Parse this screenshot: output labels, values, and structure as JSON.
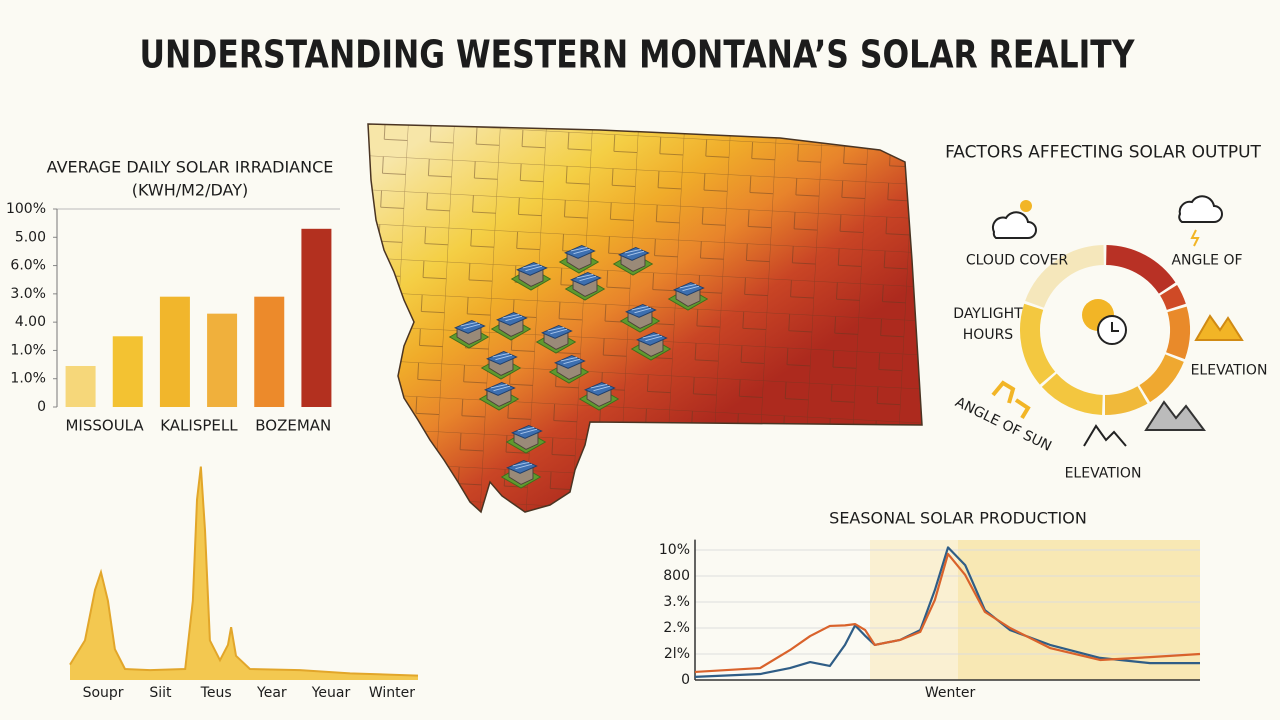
{
  "title": "UNDERSTANDING WESTERN MONTANA’S SOLAR REALITY",
  "chart_data": [
    {
      "type": "bar",
      "title": "AVERAGE DAILY SOLAR IRRADIANCE",
      "subtitle": "(KWH/M2/DAY)",
      "categories": [
        "MISSOULA",
        null,
        "KALISPELL",
        null,
        "BOZEMAN",
        null
      ],
      "values": [
        1.45,
        2.5,
        3.9,
        3.3,
        3.9,
        6.3
      ],
      "colors": [
        "#f6d77a",
        "#f3c232",
        "#f1b62c",
        "#f0b03c",
        "#ec8a2b",
        "#b3301f"
      ],
      "ylim": [
        0,
        7
      ],
      "yticks": [
        0,
        {
          "value": 1,
          "label": "1.0%"
        },
        {
          "value": 2,
          "label": "1.0%"
        },
        {
          "value": 3,
          "label": "4.00"
        },
        {
          "value": 4,
          "label": "3.0%"
        },
        {
          "value": 5,
          "label": "6.0%"
        },
        {
          "value": 6,
          "label": "5.00"
        },
        {
          "value": 7,
          "label": "100%"
        }
      ]
    },
    {
      "type": "area",
      "color": "#f2c23e",
      "x": [
        0,
        0.43,
        0.72,
        0.89,
        1.09,
        1.29,
        1.58,
        2.3,
        3.31,
        3.53,
        3.65,
        3.76,
        3.88,
        4.02,
        4.31,
        4.54,
        4.63,
        4.77,
        5.17,
        6.61,
        8.05,
        10
      ],
      "values": [
        7,
        18,
        41,
        49,
        36,
        14,
        5,
        4.5,
        5,
        36,
        82,
        97,
        68,
        18,
        9,
        16,
        24,
        11,
        5,
        4.5,
        3,
        2
      ],
      "xlim": [
        0,
        10
      ],
      "ylim": [
        0,
        100
      ],
      "xticks": [
        {
          "value": 0.95,
          "label": "Soupr"
        },
        {
          "value": 2.6,
          "label": "Siit"
        },
        {
          "value": 4.2,
          "label": "Teus"
        },
        {
          "value": 5.8,
          "label": "Year"
        },
        {
          "value": 7.5,
          "label": "Yeuar"
        },
        {
          "value": 9.25,
          "label": "Winter"
        }
      ]
    },
    {
      "type": "line",
      "title": "SEASONAL SOLAR PRODUCTION",
      "x": [
        0,
        12.9,
        18.8,
        22.8,
        26.7,
        29.7,
        31.7,
        33.7,
        35.6,
        40.6,
        44.6,
        47.5,
        50.1,
        53.5,
        57.4,
        62.4,
        70.3,
        80.2,
        90.1,
        100
      ],
      "series": [
        {
          "color": "#2f5d86",
          "values": [
            0.12,
            0.23,
            0.46,
            0.69,
            0.54,
            1.35,
            2.1,
            1.7,
            1.35,
            1.54,
            1.92,
            3.46,
            5.1,
            4.42,
            2.69,
            1.92,
            1.35,
            0.85,
            0.65,
            0.65
          ]
        },
        {
          "color": "#d9622b",
          "values": [
            0.31,
            0.46,
            1.15,
            1.69,
            2.08,
            2.1,
            2.15,
            1.92,
            1.35,
            1.54,
            1.85,
            3.08,
            4.85,
            4.04,
            2.62,
            2.0,
            1.23,
            0.77,
            0.88,
            1.0
          ]
        }
      ],
      "xlim": [
        0,
        100
      ],
      "ylim": [
        0,
        5.4
      ],
      "yticks": [
        0,
        {
          "value": 1,
          "label": "2l%"
        },
        {
          "value": 2,
          "label": "2.%"
        },
        {
          "value": 3,
          "label": "3.%"
        },
        {
          "value": 4,
          "label": "800"
        },
        {
          "value": 5,
          "label": "10%"
        }
      ],
      "xticks": [
        {
          "value": 50.5,
          "label": "Wenter"
        }
      ],
      "grid": true
    }
  ],
  "factors": {
    "title": "FACTORS AFFECTING SOLAR OUTPUT",
    "labels": [
      "CLOUD COVER",
      "ANGLE OF",
      "DAYLIGHT HOURS",
      "ELEVATION",
      "ANGLE OF SUN",
      "ELEVATION"
    ]
  }
}
